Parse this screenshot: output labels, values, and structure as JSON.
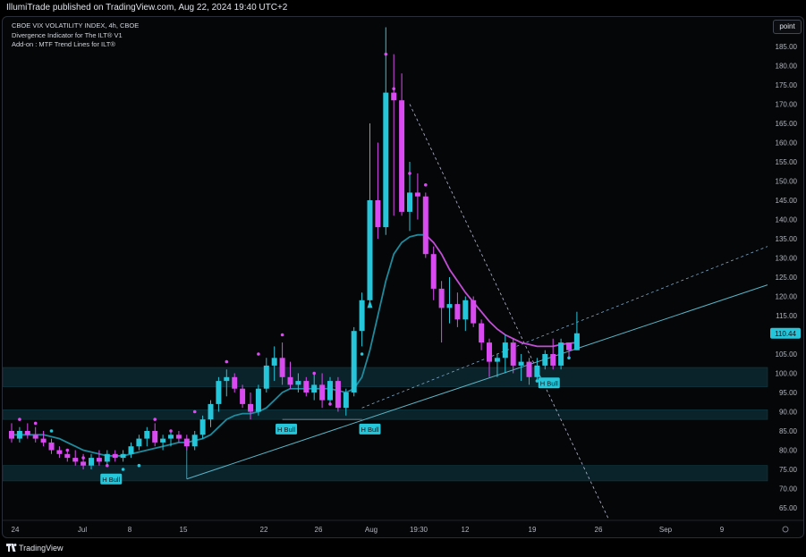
{
  "header": {
    "published_text": "IllumiTrade published on TradingView.com, Aug 22, 2024 19:40 UTC+2"
  },
  "legend": {
    "line1": "CBOE VIX VOLATILITY INDEX, 4h, CBOE",
    "line2": "Divergence Indicator for The ILT® V1",
    "line3": "Add-on : MTF Trend Lines for ILT®"
  },
  "scale_button": "point",
  "footer": {
    "brand": "TradingView"
  },
  "colors": {
    "bull": "#26c6da",
    "bear": "#d94bf0",
    "ma": "#c24ed6",
    "zone": "#0f3a44",
    "trend": "#5ab3c4",
    "bg": "#050608"
  },
  "chart_data": {
    "type": "candlestick",
    "symbol": "CBOE VIX VOLATILITY INDEX, 4h, CBOE",
    "ylim": [
      62,
      192
    ],
    "y_ticks": [
      65,
      70,
      75,
      80,
      85,
      90,
      95,
      100,
      105,
      110,
      115,
      120,
      125,
      130,
      135,
      140,
      145,
      150,
      155,
      160,
      165,
      170,
      175,
      180,
      185
    ],
    "x_ticks": [
      "24",
      "Jul",
      "8",
      "15",
      "22",
      "26",
      "Aug",
      "19:30",
      "12",
      "19",
      "26",
      "Sep",
      "9"
    ],
    "last_price_label": "110.44",
    "last_price": 110.4,
    "candles": [
      {
        "o": 85,
        "h": 87,
        "l": 82,
        "c": 83
      },
      {
        "o": 83,
        "h": 86,
        "l": 82,
        "c": 85
      },
      {
        "o": 85,
        "h": 87,
        "l": 83,
        "c": 84
      },
      {
        "o": 84,
        "h": 86,
        "l": 82,
        "c": 83
      },
      {
        "o": 83,
        "h": 85,
        "l": 81,
        "c": 82
      },
      {
        "o": 82,
        "h": 83,
        "l": 79,
        "c": 80
      },
      {
        "o": 80,
        "h": 81,
        "l": 78,
        "c": 79
      },
      {
        "o": 79,
        "h": 80,
        "l": 77,
        "c": 78
      },
      {
        "o": 78,
        "h": 80,
        "l": 76,
        "c": 77
      },
      {
        "o": 77,
        "h": 79,
        "l": 75,
        "c": 76
      },
      {
        "o": 76,
        "h": 79,
        "l": 75,
        "c": 78
      },
      {
        "o": 78,
        "h": 80,
        "l": 76,
        "c": 77
      },
      {
        "o": 77,
        "h": 80,
        "l": 76,
        "c": 79
      },
      {
        "o": 79,
        "h": 80,
        "l": 77,
        "c": 78
      },
      {
        "o": 78,
        "h": 80,
        "l": 77,
        "c": 79
      },
      {
        "o": 79,
        "h": 82,
        "l": 78,
        "c": 81
      },
      {
        "o": 81,
        "h": 84,
        "l": 80,
        "c": 83
      },
      {
        "o": 83,
        "h": 86,
        "l": 81,
        "c": 85
      },
      {
        "o": 85,
        "h": 87,
        "l": 81,
        "c": 82
      },
      {
        "o": 82,
        "h": 84,
        "l": 80,
        "c": 83
      },
      {
        "o": 83,
        "h": 85,
        "l": 81,
        "c": 84
      },
      {
        "o": 84,
        "h": 85,
        "l": 82,
        "c": 83
      },
      {
        "o": 83,
        "h": 84,
        "l": 80,
        "c": 81
      },
      {
        "o": 81,
        "h": 85,
        "l": 80,
        "c": 84
      },
      {
        "o": 84,
        "h": 89,
        "l": 83,
        "c": 88
      },
      {
        "o": 88,
        "h": 93,
        "l": 86,
        "c": 92
      },
      {
        "o": 92,
        "h": 99,
        "l": 90,
        "c": 98
      },
      {
        "o": 98,
        "h": 101,
        "l": 94,
        "c": 99
      },
      {
        "o": 99,
        "h": 100,
        "l": 95,
        "c": 96
      },
      {
        "o": 96,
        "h": 97,
        "l": 91,
        "c": 92
      },
      {
        "o": 92,
        "h": 95,
        "l": 88,
        "c": 90
      },
      {
        "o": 90,
        "h": 97,
        "l": 89,
        "c": 96
      },
      {
        "o": 96,
        "h": 104,
        "l": 95,
        "c": 102
      },
      {
        "o": 102,
        "h": 107,
        "l": 98,
        "c": 104
      },
      {
        "o": 104,
        "h": 108,
        "l": 97,
        "c": 99
      },
      {
        "o": 99,
        "h": 103,
        "l": 96,
        "c": 97
      },
      {
        "o": 97,
        "h": 100,
        "l": 95,
        "c": 98
      },
      {
        "o": 98,
        "h": 99,
        "l": 94,
        "c": 95
      },
      {
        "o": 95,
        "h": 100,
        "l": 93,
        "c": 97
      },
      {
        "o": 97,
        "h": 100,
        "l": 91,
        "c": 93
      },
      {
        "o": 93,
        "h": 99,
        "l": 92,
        "c": 98
      },
      {
        "o": 98,
        "h": 99,
        "l": 90,
        "c": 91
      },
      {
        "o": 91,
        "h": 96,
        "l": 89,
        "c": 95
      },
      {
        "o": 95,
        "h": 112,
        "l": 94,
        "c": 111
      },
      {
        "o": 111,
        "h": 121,
        "l": 107,
        "c": 119
      },
      {
        "o": 119,
        "h": 165,
        "l": 117,
        "c": 145
      },
      {
        "o": 145,
        "h": 160,
        "l": 135,
        "c": 138
      },
      {
        "o": 138,
        "h": 190,
        "l": 136,
        "c": 173
      },
      {
        "o": 173,
        "h": 183,
        "l": 141,
        "c": 171
      },
      {
        "o": 171,
        "h": 178,
        "l": 141,
        "c": 142
      },
      {
        "o": 142,
        "h": 155,
        "l": 137,
        "c": 147
      },
      {
        "o": 147,
        "h": 152,
        "l": 140,
        "c": 146
      },
      {
        "o": 146,
        "h": 147,
        "l": 130,
        "c": 131
      },
      {
        "o": 131,
        "h": 133,
        "l": 119,
        "c": 122
      },
      {
        "o": 122,
        "h": 124,
        "l": 108,
        "c": 117
      },
      {
        "o": 117,
        "h": 125,
        "l": 113,
        "c": 118
      },
      {
        "o": 118,
        "h": 121,
        "l": 112,
        "c": 114
      },
      {
        "o": 114,
        "h": 120,
        "l": 111,
        "c": 119
      },
      {
        "o": 119,
        "h": 120,
        "l": 112,
        "c": 113
      },
      {
        "o": 113,
        "h": 114,
        "l": 106,
        "c": 108
      },
      {
        "o": 108,
        "h": 109,
        "l": 99,
        "c": 103
      },
      {
        "o": 103,
        "h": 105,
        "l": 99,
        "c": 104
      },
      {
        "o": 104,
        "h": 110,
        "l": 100,
        "c": 108
      },
      {
        "o": 108,
        "h": 109,
        "l": 100,
        "c": 102
      },
      {
        "o": 102,
        "h": 105,
        "l": 98,
        "c": 103
      },
      {
        "o": 103,
        "h": 104,
        "l": 97,
        "c": 99
      },
      {
        "o": 99,
        "h": 104,
        "l": 98,
        "c": 102
      },
      {
        "o": 102,
        "h": 106,
        "l": 101,
        "c": 105
      },
      {
        "o": 105,
        "h": 109,
        "l": 101,
        "c": 102
      },
      {
        "o": 102,
        "h": 109,
        "l": 101,
        "c": 108
      },
      {
        "o": 108,
        "h": 108,
        "l": 104,
        "c": 106
      },
      {
        "o": 106,
        "h": 116,
        "l": 106,
        "c": 110.4
      }
    ],
    "ma_values": [
      84,
      84,
      84,
      84,
      84,
      83.5,
      83,
      82,
      81,
      80,
      79.5,
      79,
      78.5,
      78.5,
      78.5,
      79,
      79.5,
      80,
      80.5,
      81,
      81.5,
      82,
      82,
      82.5,
      83,
      84,
      86,
      88,
      89,
      89.5,
      89.5,
      90,
      91,
      93,
      95,
      96,
      96,
      96,
      96,
      96,
      96,
      95.5,
      95,
      96,
      99,
      106,
      115,
      124,
      131,
      134,
      135.5,
      136,
      136,
      134,
      131,
      127,
      124,
      121,
      118.5,
      116,
      113.5,
      111.5,
      110,
      109,
      108,
      107.5,
      107,
      107,
      107,
      107.5,
      107.8,
      108
    ],
    "zones": [
      [
        96.5,
        101.5
      ],
      [
        88,
        90.5
      ],
      [
        72,
        76
      ]
    ],
    "annotations": [
      "H Bull",
      "H Bull",
      "H Bull"
    ]
  }
}
